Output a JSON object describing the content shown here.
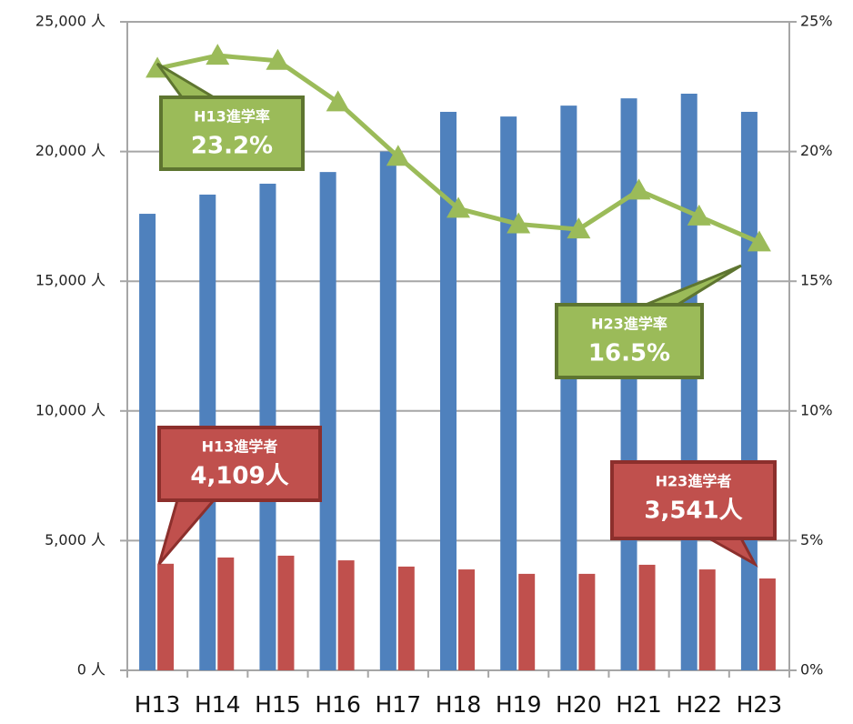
{
  "chart_data": {
    "type": "bar_line",
    "categories": [
      "H13",
      "H14",
      "H15",
      "H16",
      "H17",
      "H18",
      "H19",
      "H20",
      "H21",
      "H22",
      "H23"
    ],
    "series": [
      {
        "color": "#4f81bd",
        "values": [
          17600,
          18340,
          18760,
          19210,
          20000,
          21530,
          21350,
          21770,
          22050,
          22230,
          21530
        ]
      },
      {
        "color": "#c0504d",
        "values": [
          4109,
          4350,
          4420,
          4240,
          4000,
          3890,
          3720,
          3720,
          4070,
          3890,
          3541
        ]
      },
      {
        "color": "#9bbb59",
        "axis": "y2",
        "values": [
          23.2,
          23.7,
          23.5,
          21.9,
          19.8,
          17.8,
          17.2,
          17.0,
          18.5,
          17.5,
          16.5
        ]
      }
    ],
    "ylim": [
      0,
      25000
    ],
    "yticks": [
      {
        "value": 0,
        "label": "0 人"
      },
      {
        "value": 5000,
        "label": "5,000 人"
      },
      {
        "value": 10000,
        "label": "10,000 人"
      },
      {
        "value": 15000,
        "label": "15,000 人"
      },
      {
        "value": 20000,
        "label": "20,000 人"
      },
      {
        "value": 25000,
        "label": "25,000 人"
      }
    ],
    "y2lim": [
      0,
      25
    ],
    "y2ticks": [
      {
        "value": 0,
        "label": "0%"
      },
      {
        "value": 5,
        "label": "5%"
      },
      {
        "value": 10,
        "label": "10%"
      },
      {
        "value": 15,
        "label": "15%"
      },
      {
        "value": 20,
        "label": "20%"
      },
      {
        "value": 25,
        "label": "25%"
      }
    ],
    "grid": true,
    "annotations": [
      {
        "label": "H13進学率",
        "text": "23.2%",
        "color": "#77933c"
      },
      {
        "label": "H23進学率",
        "text": "16.5%",
        "color": "#77933c"
      },
      {
        "label": "H13進学者",
        "text": "4,109人",
        "color": "#c0504d"
      },
      {
        "label": "H23進学者",
        "text": "3,541人",
        "color": "#c0504d"
      }
    ]
  }
}
